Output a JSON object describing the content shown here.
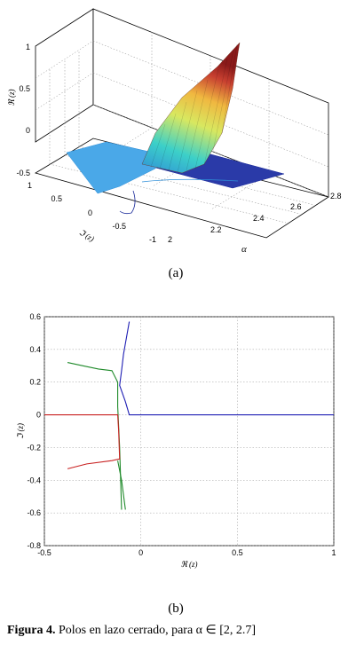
{
  "caption": {
    "label": "Figura 4.",
    "text": "Polos en lazo cerrado, para",
    "range": "α ∈ [2,  2.7]"
  },
  "chart_data": [
    {
      "type": "surface",
      "panel_label": "(a)",
      "title": "",
      "xlabel": "α",
      "ylabel": "ℑ (z)",
      "zlabel": "ℜ (z)",
      "xlim": [
        2,
        2.8
      ],
      "ylim": [
        -1,
        1
      ],
      "zlim": [
        -0.5,
        1
      ],
      "x_ticks": [
        "2",
        "2.2",
        "2.4",
        "2.6",
        "2.8"
      ],
      "y_ticks": [
        "-1",
        "-0.5",
        "0",
        "0.5",
        "1"
      ],
      "z_ticks": [
        "-0.5",
        "0",
        "0.5",
        "1"
      ],
      "grid": true,
      "colormap": [
        "#1a2a9a",
        "#2f8fd8",
        "#3cd0c8",
        "#d8e860",
        "#f0b840",
        "#c84030",
        "#8a1a1a"
      ]
    },
    {
      "type": "line",
      "panel_label": "(b)",
      "title": "",
      "xlabel": "ℜ (z)",
      "ylabel": "ℑ (z)",
      "xlim": [
        -0.5,
        1
      ],
      "ylim": [
        -0.8,
        0.6
      ],
      "x_ticks": [
        "-0.5",
        "0",
        "0.5",
        "1"
      ],
      "y_ticks": [
        "0.6",
        "0.4",
        "0.2",
        "0",
        "-0.2",
        "-0.4",
        "-0.6",
        "-0.8"
      ],
      "grid": true,
      "series": [
        {
          "color": "#1f1fb4",
          "x": [
            -0.06,
            -0.075,
            -0.09,
            -0.1,
            -0.11,
            -0.08,
            -0.06,
            1
          ],
          "y": [
            0.57,
            0.47,
            0.37,
            0.27,
            0.18,
            0.08,
            0,
            0
          ]
        },
        {
          "color": "#1f8a2a",
          "x": [
            -0.38,
            -0.3,
            -0.22,
            -0.15,
            -0.12,
            -0.12,
            -0.11,
            -0.1
          ],
          "y": [
            0.32,
            0.3,
            0.28,
            0.27,
            0.2,
            0.05,
            -0.2,
            -0.58
          ]
        },
        {
          "color": "#1f8a2a",
          "x": [
            -0.12,
            -0.1,
            -0.08
          ],
          "y": [
            -0.28,
            -0.4,
            -0.58
          ]
        },
        {
          "color": "#c82020",
          "x": [
            -0.5,
            -0.35,
            -0.2,
            -0.12,
            -0.115,
            -0.11,
            -0.15,
            -0.28,
            -0.38
          ],
          "y": [
            0,
            0,
            0,
            0,
            -0.1,
            -0.27,
            -0.28,
            -0.3,
            -0.33
          ]
        }
      ]
    }
  ]
}
